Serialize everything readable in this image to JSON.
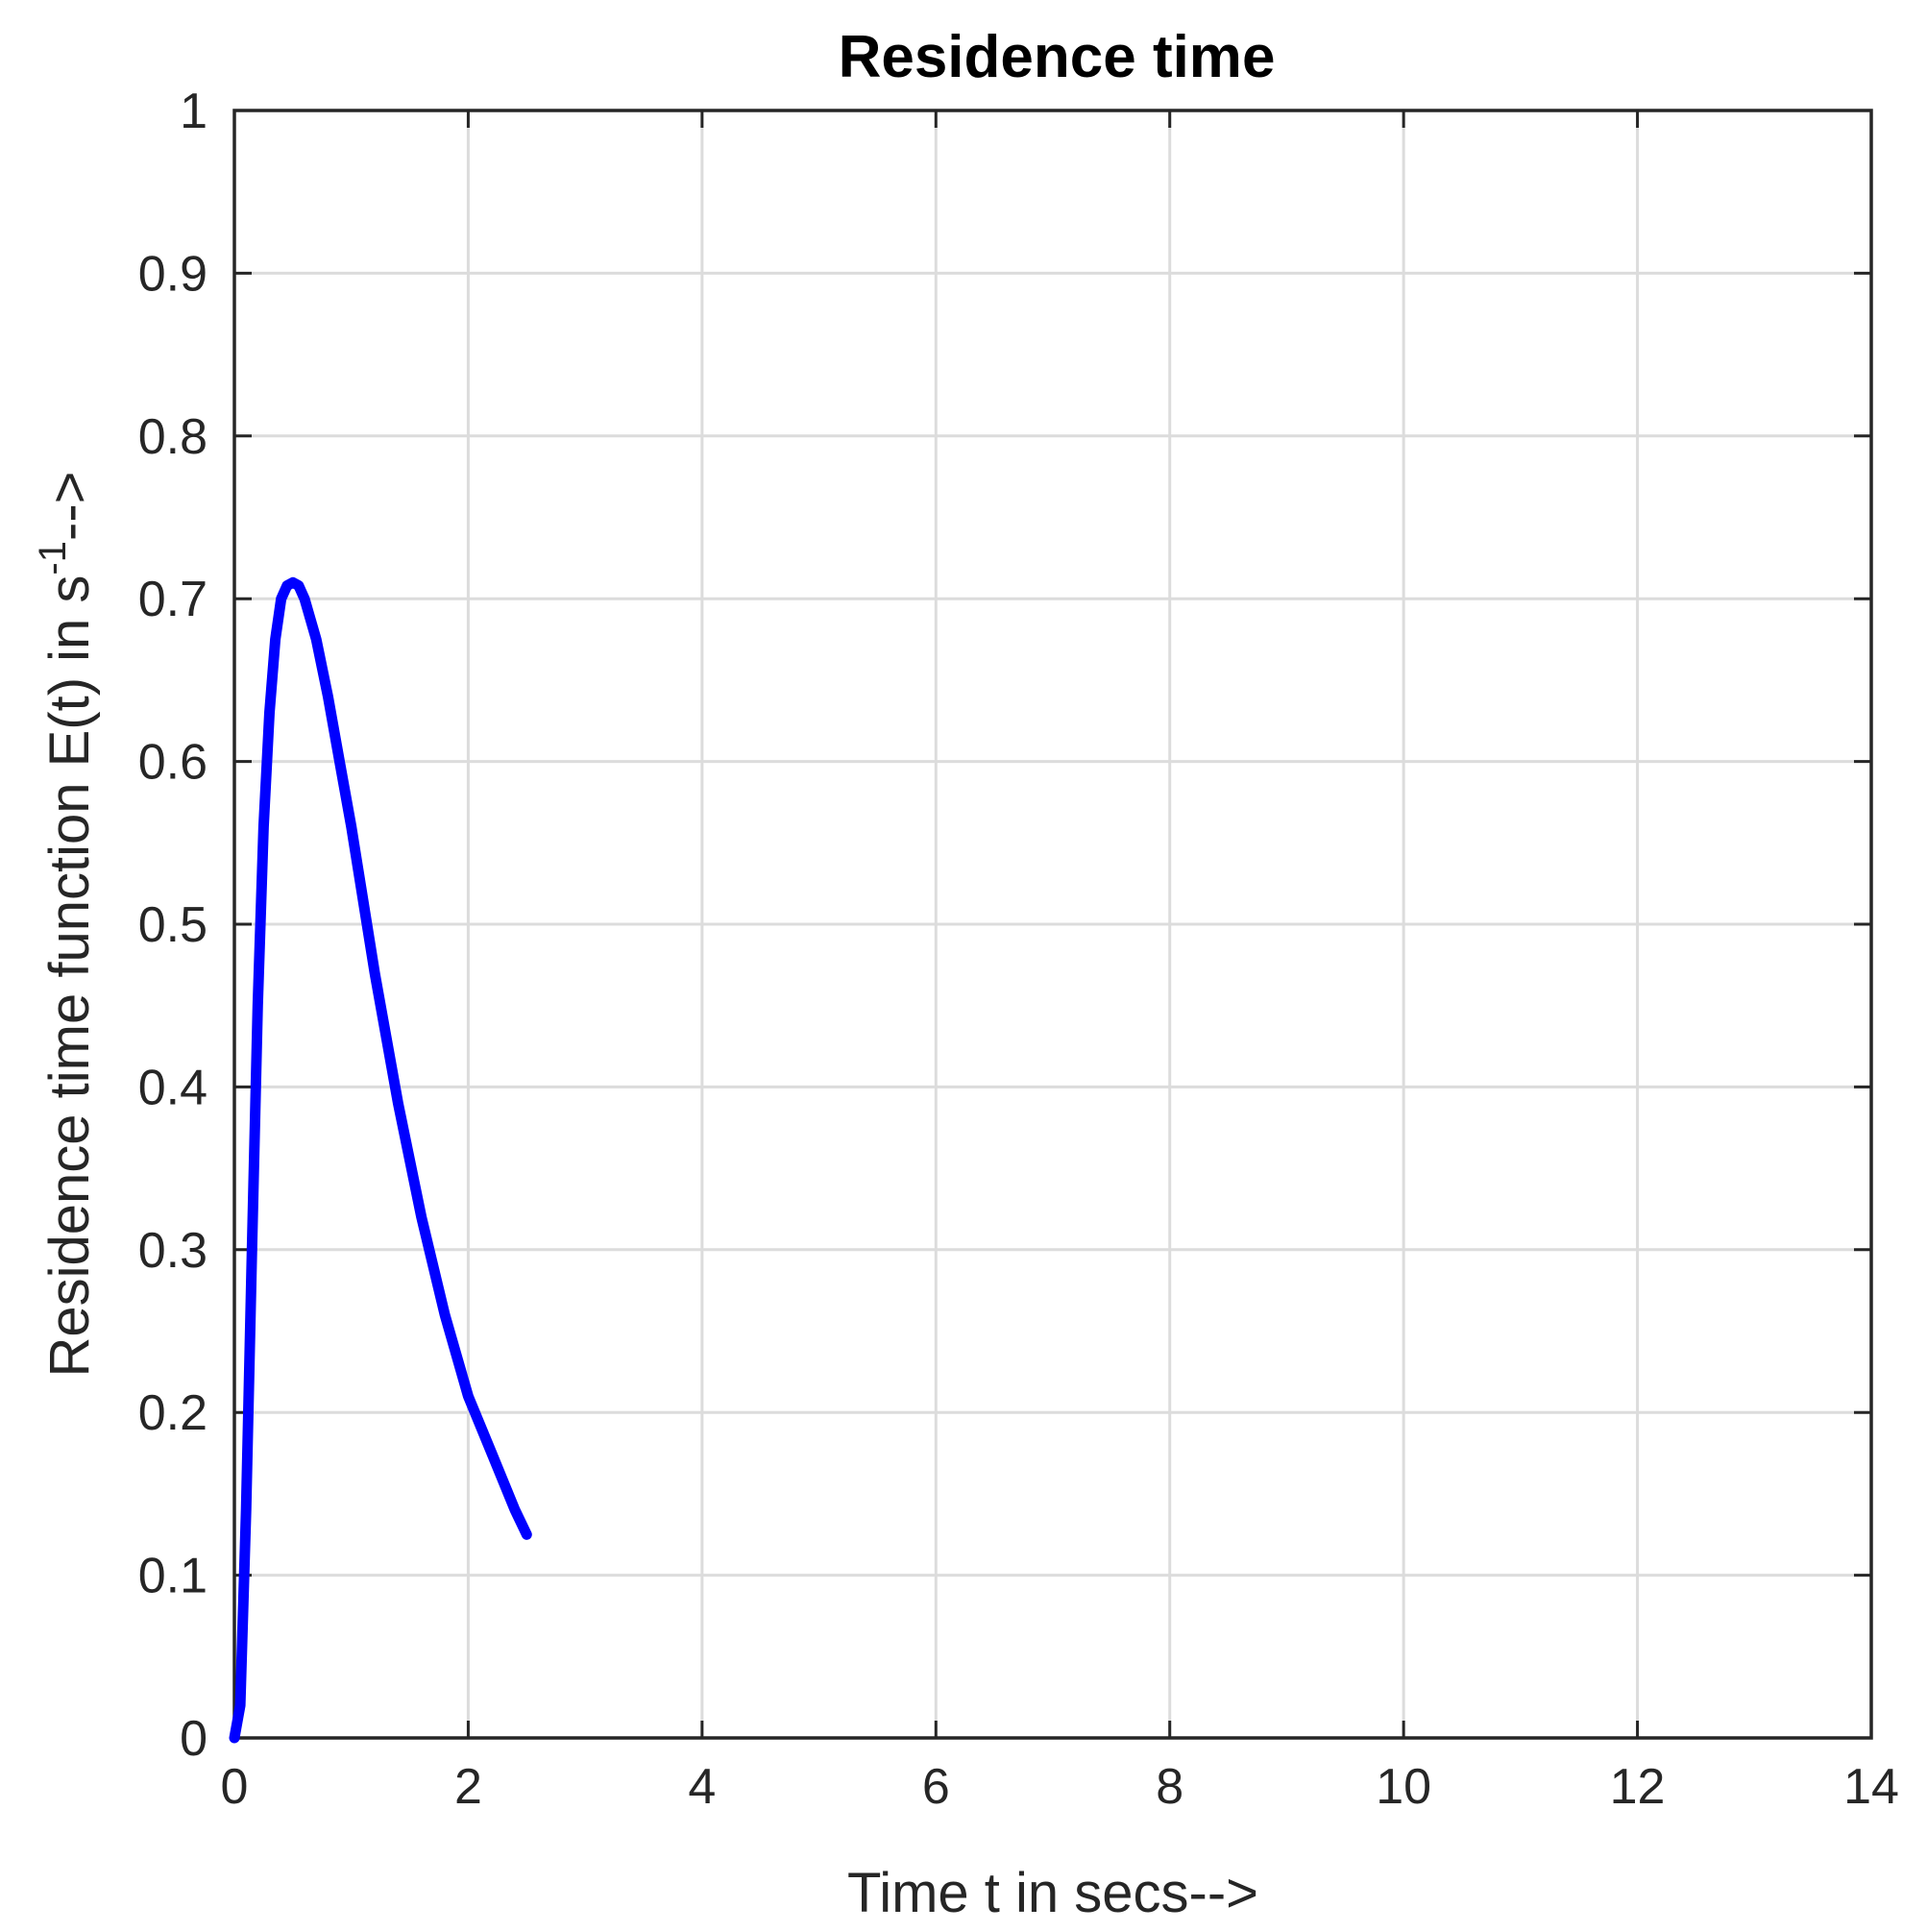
{
  "chart_data": {
    "type": "line",
    "title": "Residence time",
    "xlabel": "Time t in secs-->",
    "ylabel": {
      "main": "Residence time function E(t) in s",
      "superscript": "-1",
      "suffix": "-->"
    },
    "xlim": [
      0,
      14
    ],
    "ylim": [
      0,
      1
    ],
    "xticks": [
      0,
      2,
      4,
      6,
      8,
      10,
      12,
      14
    ],
    "yticks": [
      0,
      0.1,
      0.2,
      0.3,
      0.4,
      0.5,
      0.6,
      0.7,
      0.8,
      0.9,
      1
    ],
    "ytick_labels": [
      "0",
      "0.1",
      "0.2",
      "0.3",
      "0.4",
      "0.5",
      "0.6",
      "0.7",
      "0.8",
      "0.9",
      "1"
    ],
    "xtick_labels": [
      "0",
      "2",
      "4",
      "6",
      "8",
      "10",
      "12",
      "14"
    ],
    "grid": true,
    "series": [
      {
        "color": "#0000ff",
        "x": [
          0,
          0.05,
          0.1,
          0.15,
          0.2,
          0.25,
          0.3,
          0.35,
          0.4,
          0.45,
          0.5,
          0.55,
          0.6,
          0.7,
          0.8,
          0.9,
          1.0,
          1.2,
          1.4,
          1.6,
          1.8,
          2.0,
          2.2,
          2.4,
          2.5
        ],
        "y": [
          0,
          0.02,
          0.14,
          0.3,
          0.45,
          0.56,
          0.63,
          0.675,
          0.7,
          0.708,
          0.71,
          0.708,
          0.7,
          0.675,
          0.64,
          0.6,
          0.56,
          0.47,
          0.39,
          0.32,
          0.26,
          0.21,
          0.175,
          0.14,
          0.125
        ]
      }
    ]
  }
}
